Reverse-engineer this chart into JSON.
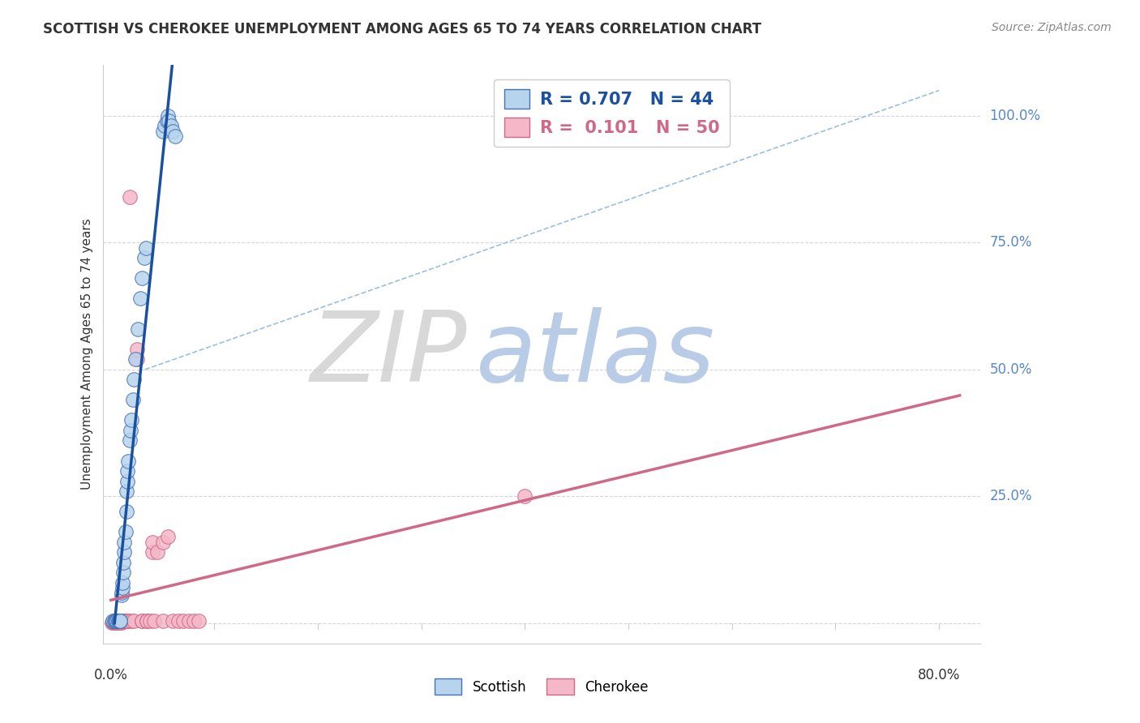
{
  "title": "SCOTTISH VS CHEROKEE UNEMPLOYMENT AMONG AGES 65 TO 74 YEARS CORRELATION CHART",
  "source": "Source: ZipAtlas.com",
  "ylabel": "Unemployment Among Ages 65 to 74 years",
  "watermark_zip": "ZIP",
  "watermark_atlas": "atlas",
  "legend_scottish": "Scottish",
  "legend_cherokee": "Cherokee",
  "r_scottish": "0.707",
  "n_scottish": "44",
  "r_cherokee": "0.101",
  "n_cherokee": "50",
  "scottish_color": "#b8d4ec",
  "scottish_edge_color": "#4472b8",
  "cherokee_color": "#f4b8c8",
  "cherokee_edge_color": "#d06888",
  "scottish_line_color": "#1a50a0",
  "cherokee_line_color": "#d06888",
  "ref_line_color": "#90b8d8",
  "grid_color": "#cccccc",
  "bg_color": "#ffffff",
  "text_color": "#333333",
  "right_label_color": "#5588cc",
  "ytick_vals": [
    0.0,
    0.25,
    0.5,
    0.75,
    1.0
  ],
  "ytick_labels": [
    "",
    "25.0%",
    "50.0%",
    "75.0%",
    "100.0%"
  ],
  "scottish_x": [
    0.002,
    0.003,
    0.004,
    0.005,
    0.006,
    0.007,
    0.007,
    0.008,
    0.008,
    0.009,
    0.009,
    0.01,
    0.01,
    0.011,
    0.011,
    0.012,
    0.012,
    0.013,
    0.013,
    0.014,
    0.015,
    0.015,
    0.016,
    0.016,
    0.017,
    0.018,
    0.019,
    0.02,
    0.021,
    0.022,
    0.024,
    0.026,
    0.028,
    0.03,
    0.032,
    0.034,
    0.05,
    0.052,
    0.054,
    0.055,
    0.056,
    0.058,
    0.06,
    0.062
  ],
  "scottish_y": [
    0.005,
    0.005,
    0.005,
    0.005,
    0.005,
    0.005,
    0.005,
    0.005,
    0.005,
    0.005,
    0.005,
    0.055,
    0.06,
    0.07,
    0.08,
    0.1,
    0.12,
    0.14,
    0.16,
    0.18,
    0.22,
    0.26,
    0.28,
    0.3,
    0.32,
    0.36,
    0.38,
    0.4,
    0.44,
    0.48,
    0.52,
    0.58,
    0.64,
    0.68,
    0.72,
    0.74,
    0.97,
    0.98,
    0.99,
    1.0,
    0.99,
    0.98,
    0.97,
    0.96
  ],
  "cherokee_x": [
    0.001,
    0.002,
    0.002,
    0.003,
    0.003,
    0.004,
    0.004,
    0.005,
    0.005,
    0.006,
    0.006,
    0.007,
    0.008,
    0.008,
    0.009,
    0.009,
    0.01,
    0.01,
    0.011,
    0.011,
    0.012,
    0.013,
    0.014,
    0.015,
    0.016,
    0.017,
    0.018,
    0.02,
    0.022,
    0.025,
    0.025,
    0.03,
    0.03,
    0.035,
    0.035,
    0.038,
    0.04,
    0.04,
    0.042,
    0.045,
    0.05,
    0.05,
    0.055,
    0.06,
    0.065,
    0.07,
    0.075,
    0.08,
    0.085,
    0.4
  ],
  "cherokee_y": [
    0.002,
    0.002,
    0.003,
    0.002,
    0.003,
    0.002,
    0.004,
    0.002,
    0.004,
    0.002,
    0.003,
    0.003,
    0.002,
    0.004,
    0.002,
    0.004,
    0.002,
    0.004,
    0.003,
    0.005,
    0.005,
    0.005,
    0.005,
    0.005,
    0.005,
    0.005,
    0.84,
    0.005,
    0.005,
    0.52,
    0.54,
    0.005,
    0.005,
    0.005,
    0.005,
    0.005,
    0.14,
    0.16,
    0.005,
    0.14,
    0.16,
    0.005,
    0.17,
    0.005,
    0.005,
    0.005,
    0.005,
    0.005,
    0.005,
    0.25
  ]
}
